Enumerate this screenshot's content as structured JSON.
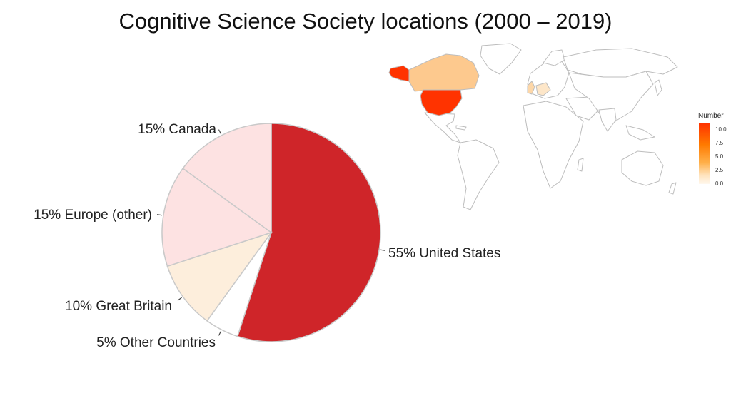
{
  "title": "Cognitive Science Society locations (2000 – 2019)",
  "chart_data": [
    {
      "type": "pie",
      "slices": [
        {
          "label": "55% United States",
          "value": 55,
          "color": "#cf2529"
        },
        {
          "label": "5% Other Countries",
          "value": 5,
          "color": "#ffffff"
        },
        {
          "label": "10% Great Britain",
          "value": 10,
          "color": "#fdeedc"
        },
        {
          "label": "15% Europe (other)",
          "value": 15,
          "color": "#fde2e2"
        },
        {
          "label": "15% Canada",
          "value": 15,
          "color": "#fde2e2"
        }
      ]
    },
    {
      "type": "heatmap",
      "subtype": "choropleth world map",
      "legend": {
        "title": "Number",
        "ticks": [
          "10.0",
          "7.5",
          "5.0",
          "2.5",
          "0.0"
        ],
        "range": [
          0,
          10.0
        ],
        "colors": [
          "#fff8ee",
          "#ff3300"
        ]
      },
      "regions": [
        {
          "name": "United States",
          "value": 11,
          "color": "#ff3300"
        },
        {
          "name": "Canada",
          "value": 3,
          "color": "#fdc98e"
        },
        {
          "name": "Great Britain",
          "value": 2,
          "color": "#fdd7a8"
        },
        {
          "name": "Europe (other)",
          "value": 1,
          "color": "#fde6c8"
        }
      ]
    }
  ]
}
